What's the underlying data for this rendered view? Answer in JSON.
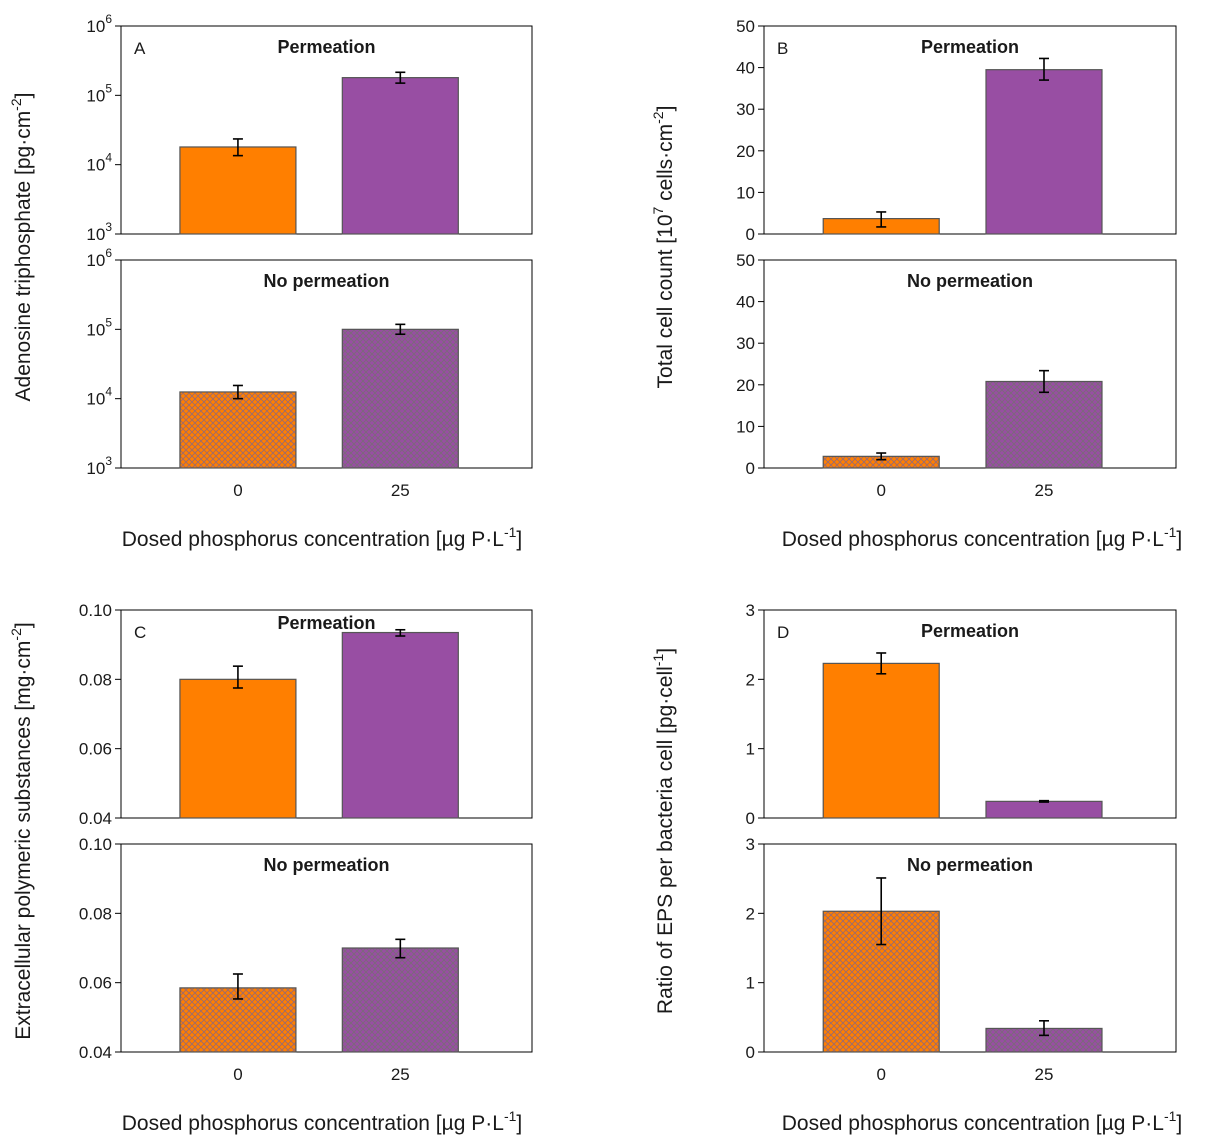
{
  "x_axis_label": "Dosed phosphorus concentration [µg P·L",
  "x_axis_label_sup": "-1",
  "x_axis_label_end": "]",
  "colors": {
    "orange": "#FF7F00",
    "purple": "#984EA3",
    "hatch_line": "#8a6a80"
  },
  "chart_data": [
    {
      "id": "A",
      "type": "bar",
      "letter": "A",
      "scale": "log",
      "ylim": [
        1000,
        1000000
      ],
      "yticks": [
        3,
        4,
        5,
        6
      ],
      "ylabel": "Adenosine triphosphate [pg·cm",
      "ylabel_sup": "-2",
      "ylabel_end": "]",
      "categories": [
        "0",
        "25"
      ],
      "subpanels": [
        {
          "title": "Permeation",
          "style": "solid",
          "values": [
            18000,
            180000
          ],
          "errors": [
            [
              13500,
              23500
            ],
            [
              150000,
              215000
            ]
          ]
        },
        {
          "title": "No permeation",
          "style": "hatched",
          "values": [
            12500,
            100000
          ],
          "errors": [
            [
              10000,
              15500
            ],
            [
              85000,
              118000
            ]
          ]
        }
      ]
    },
    {
      "id": "B",
      "type": "bar",
      "letter": "B",
      "scale": "linear",
      "ylim": [
        0,
        50
      ],
      "yticks": [
        "0",
        "10",
        "20",
        "30",
        "40",
        "50"
      ],
      "ylabel": "Total cell count [10",
      "ylabel_sup": "7",
      "ylabel_end": " cells·cm",
      "ylabel_sup2": "-2",
      "ylabel_end2": "]",
      "categories": [
        "0",
        "25"
      ],
      "subpanels": [
        {
          "title": "Permeation",
          "style": "solid",
          "values": [
            3.7,
            39.5
          ],
          "errors": [
            [
              1.7,
              5.3
            ],
            [
              37.0,
              42.2
            ]
          ]
        },
        {
          "title": "No permeation",
          "style": "hatched",
          "values": [
            2.8,
            20.8
          ],
          "errors": [
            [
              2.0,
              3.6
            ],
            [
              18.2,
              23.4
            ]
          ]
        }
      ]
    },
    {
      "id": "C",
      "type": "bar",
      "letter": "C",
      "scale": "linear",
      "ylim": [
        0.04,
        0.1
      ],
      "yticks": [
        "0.04",
        "0.06",
        "0.08",
        "0.10"
      ],
      "ylabel": "Extracellular polymeric substances [mg·cm",
      "ylabel_sup": "-2",
      "ylabel_end": "]",
      "categories": [
        "0",
        "25"
      ],
      "subpanels": [
        {
          "title": "Permeation",
          "style": "solid",
          "values": [
            0.08,
            0.0935
          ],
          "errors": [
            [
              0.0775,
              0.0838
            ],
            [
              0.0925,
              0.0943
            ]
          ]
        },
        {
          "title": "No permeation",
          "style": "hatched",
          "values": [
            0.0585,
            0.07
          ],
          "errors": [
            [
              0.0553,
              0.0625
            ],
            [
              0.0672,
              0.0725
            ]
          ]
        }
      ]
    },
    {
      "id": "D",
      "type": "bar",
      "letter": "D",
      "scale": "linear",
      "ylim": [
        0,
        3
      ],
      "yticks": [
        "0",
        "1",
        "2",
        "3"
      ],
      "ylabel": "Ratio of EPS per bacteria cell [pg·cell",
      "ylabel_sup": "-1",
      "ylabel_end": "]",
      "categories": [
        "0",
        "25"
      ],
      "subpanels": [
        {
          "title": "Permeation",
          "style": "solid",
          "values": [
            2.23,
            0.24
          ],
          "errors": [
            [
              2.08,
              2.38
            ],
            [
              0.23,
              0.25
            ]
          ]
        },
        {
          "title": "No permeation",
          "style": "hatched",
          "values": [
            2.03,
            0.34
          ],
          "errors": [
            [
              1.55,
              2.51
            ],
            [
              0.24,
              0.45
            ]
          ]
        }
      ]
    }
  ]
}
